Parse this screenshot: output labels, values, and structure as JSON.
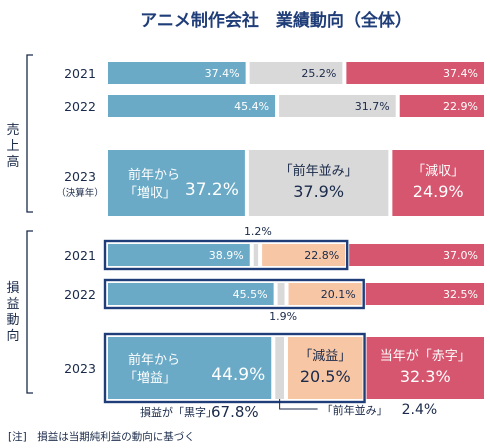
{
  "chart_data": {
    "type": "bar",
    "stacked": "100%",
    "title": "アニメ制作会社　業績動向（全体）",
    "value_unit": "%",
    "colors": {
      "up": "#6aaac6",
      "flat": "#d9d9d9",
      "down": "#d6566f",
      "neg_loss": "#f7c6a5",
      "highlight": "#1f3d78",
      "label": "#1a2a4a"
    },
    "series": [
      {
        "name": "増",
        "values": [
          37.4,
          45.4,
          37.2,
          38.9,
          45.5,
          44.9
        ]
      },
      {
        "name": "横ばい",
        "values": [
          25.2,
          31.7,
          37.9,
          1.2,
          1.9,
          2.4
        ]
      },
      {
        "name": "減",
        "values": [
          0,
          0,
          0,
          22.8,
          20.1,
          20.5
        ]
      },
      {
        "name": "赤字",
        "values": [
          37.4,
          22.9,
          24.9,
          37.0,
          32.5,
          32.3
        ]
      }
    ],
    "groups": [
      {
        "label": "売上高",
        "rows": [
          {
            "year": "2021",
            "up": 37.4,
            "flat": 25.2,
            "down": 37.4
          },
          {
            "year": "2022",
            "up": 45.4,
            "flat": 31.7,
            "down": 22.9
          },
          {
            "year": "2023",
            "year_note": "（決算年）",
            "up": 37.2,
            "up_label": [
              "前年から",
              "「増収」"
            ],
            "flat": 37.9,
            "flat_label": "「前年並み」",
            "down": 24.9,
            "down_label": "「減収」"
          }
        ]
      },
      {
        "label": "損益動向",
        "rows": [
          {
            "year": "2021",
            "up": 38.9,
            "flat": 1.2,
            "neg": 22.8,
            "down": 37.0
          },
          {
            "year": "2022",
            "up": 45.5,
            "flat": 1.9,
            "neg": 20.1,
            "down": 32.5
          },
          {
            "year": "2023",
            "up": 44.9,
            "up_label": [
              "前年から",
              "「増益」"
            ],
            "flat": 2.4,
            "flat_label": "「前年並み」",
            "neg": 20.5,
            "neg_label": "「減益」",
            "down": 32.3,
            "down_label": "当年が「赤字」"
          }
        ]
      }
    ],
    "annotations": {
      "profit_total_label": "損益が「黒字」",
      "profit_total_value": 67.8
    }
  },
  "note": "[注]　損益は当期純利益の動向に基づく"
}
